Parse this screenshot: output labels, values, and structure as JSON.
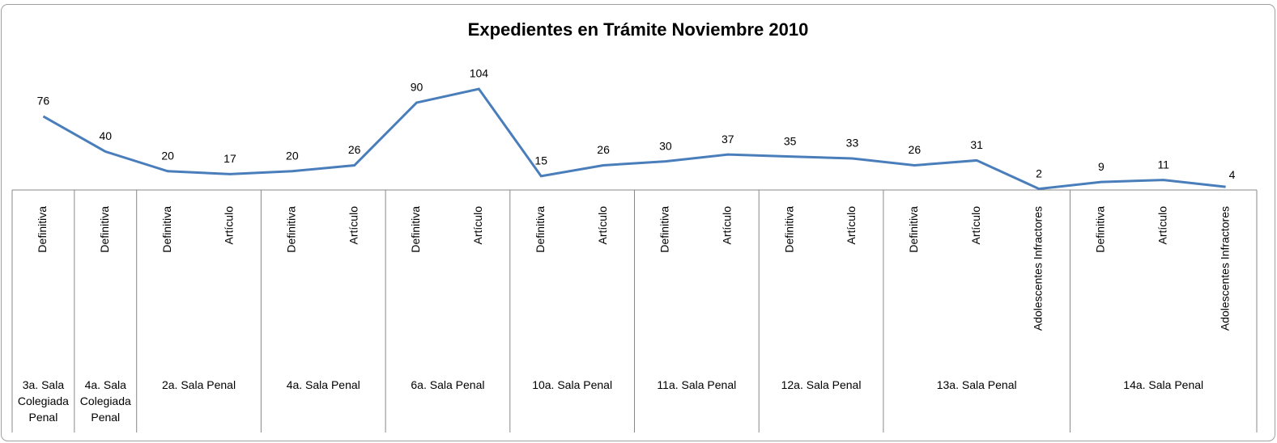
{
  "chart_data": {
    "type": "line",
    "title": "Expedientes en Trámite Noviembre 2010",
    "groups": [
      {
        "name": "3a. Sala Colegiada Penal",
        "categories": [
          "Definitiva"
        ]
      },
      {
        "name": "4a. Sala Colegiada Penal",
        "categories": [
          "Definitiva"
        ]
      },
      {
        "name": "2a. Sala Penal",
        "categories": [
          "Definitiva",
          "Artículo"
        ]
      },
      {
        "name": "4a. Sala Penal",
        "categories": [
          "Definitiva",
          "Artículo"
        ]
      },
      {
        "name": "6a. Sala Penal",
        "categories": [
          "Definitiva",
          "Artículo"
        ]
      },
      {
        "name": "10a. Sala Penal",
        "categories": [
          "Definitiva",
          "Artículo"
        ]
      },
      {
        "name": "11a. Sala Penal",
        "categories": [
          "Definitiva",
          "Artículo"
        ]
      },
      {
        "name": "12a. Sala Penal",
        "categories": [
          "Definitiva",
          "Artículo"
        ]
      },
      {
        "name": "13a. Sala Penal",
        "categories": [
          "Definitiva",
          "Artículo",
          "Adolescentes Infractores"
        ]
      },
      {
        "name": "14a. Sala Penal",
        "categories": [
          "Definitiva",
          "Artículo",
          "Adolescentes Infractores"
        ]
      }
    ],
    "series": [
      {
        "color": "#4a7ebb",
        "values": [
          76,
          40,
          20,
          17,
          20,
          26,
          90,
          104,
          15,
          26,
          30,
          37,
          35,
          33,
          26,
          31,
          2,
          9,
          11,
          4
        ]
      }
    ]
  }
}
